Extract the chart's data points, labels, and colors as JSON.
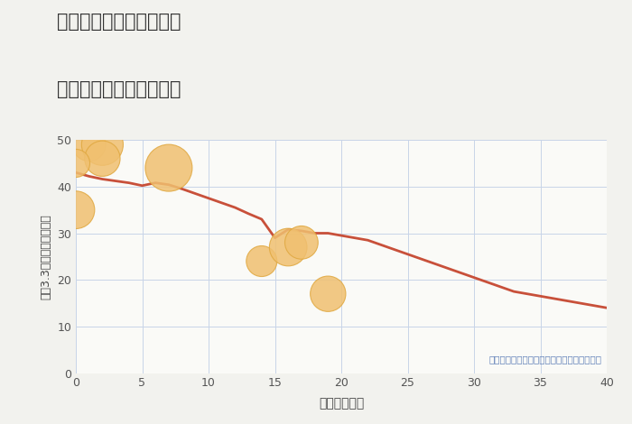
{
  "title_line1": "埼玉県加須市内田ヶ谷の",
  "title_line2": "築年数別中古戸建て価格",
  "xlabel": "築年数（年）",
  "ylabel": "坪（3.3㎡）単価（万円）",
  "annotation": "円の大きさは、取引のあった物件面積を示す",
  "xlim": [
    0,
    40
  ],
  "ylim": [
    0,
    50
  ],
  "xticks": [
    0,
    5,
    10,
    15,
    20,
    25,
    30,
    35,
    40
  ],
  "yticks": [
    0,
    10,
    20,
    30,
    40,
    50
  ],
  "background_color": "#f2f2ee",
  "plot_bg_color": "#fafaf7",
  "grid_color": "#c8d4e8",
  "line_color": "#c8503a",
  "scatter_color": "#f0c070",
  "scatter_edge_color": "#e0a840",
  "line_x": [
    0,
    1,
    2,
    3,
    4,
    5,
    6,
    7,
    8,
    9,
    10,
    11,
    12,
    13,
    14,
    15,
    16,
    17,
    18,
    19,
    20,
    21,
    22,
    23,
    24,
    25,
    26,
    27,
    28,
    29,
    30,
    31,
    32,
    33,
    34,
    35,
    36,
    37,
    38,
    39,
    40
  ],
  "line_y": [
    43.0,
    42.2,
    41.6,
    41.2,
    40.8,
    40.2,
    40.8,
    40.4,
    39.5,
    38.5,
    37.5,
    36.5,
    35.5,
    34.2,
    33.0,
    29.0,
    30.8,
    30.5,
    30.0,
    30.0,
    29.5,
    29.0,
    28.5,
    27.5,
    26.5,
    25.5,
    24.5,
    23.5,
    22.5,
    21.5,
    20.5,
    19.5,
    18.5,
    17.5,
    17.0,
    16.5,
    16.0,
    15.5,
    15.0,
    14.5,
    14.0
  ],
  "scatter_x": [
    1,
    2,
    2,
    0,
    0,
    7,
    14,
    16,
    17,
    19
  ],
  "scatter_y": [
    49,
    49,
    46,
    45,
    35,
    44,
    24,
    27,
    28,
    17
  ],
  "scatter_sizes": [
    700,
    1100,
    800,
    500,
    900,
    1400,
    600,
    900,
    700,
    800
  ]
}
